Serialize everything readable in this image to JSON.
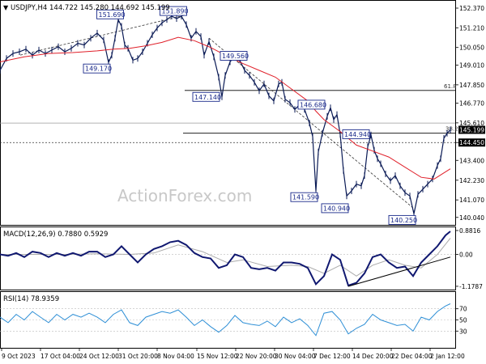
{
  "chart_data": [
    {
      "type": "candlestick",
      "panel": "price",
      "title": "USDJPY,H4  144.722 145.280 144.692 145.199",
      "ylim": [
        139.6,
        152.8
      ],
      "yticks": [
        "152.370",
        "151.210",
        "150.050",
        "149.010",
        "147.850",
        "146.770",
        "145.610",
        "144.450",
        "143.400",
        "142.230",
        "141.070",
        "140.040"
      ],
      "last_price": "145.199",
      "marked_level": "144.450",
      "fib_label": "61.8",
      "fib_label2": "38.2",
      "watermark": "ActionForex.com",
      "price_path": [
        [
          0,
          148.7
        ],
        [
          8,
          149.4
        ],
        [
          16,
          149.7
        ],
        [
          24,
          149.8
        ],
        [
          32,
          149.95
        ],
        [
          40,
          149.6
        ],
        [
          48,
          149.9
        ],
        [
          56,
          149.7
        ],
        [
          64,
          149.9
        ],
        [
          72,
          150.1
        ],
        [
          80,
          149.8
        ],
        [
          88,
          150.0
        ],
        [
          96,
          150.3
        ],
        [
          104,
          150.2
        ],
        [
          112,
          150.6
        ],
        [
          120,
          150.9
        ],
        [
          128,
          150.5
        ],
        [
          134,
          149.17
        ],
        [
          138,
          149.6
        ],
        [
          142,
          150.6
        ],
        [
          146,
          151.69
        ],
        [
          150,
          151.3
        ],
        [
          154,
          150.2
        ],
        [
          158,
          150.0
        ],
        [
          164,
          149.3
        ],
        [
          170,
          149.4
        ],
        [
          176,
          149.8
        ],
        [
          182,
          150.3
        ],
        [
          188,
          150.8
        ],
        [
          194,
          151.2
        ],
        [
          200,
          151.5
        ],
        [
          206,
          151.7
        ],
        [
          212,
          151.9
        ],
        [
          218,
          151.75
        ],
        [
          224,
          151.89
        ],
        [
          230,
          151.4
        ],
        [
          236,
          150.6
        ],
        [
          242,
          151.0
        ],
        [
          248,
          150.7
        ],
        [
          252,
          149.6
        ],
        [
          258,
          150.4
        ],
        [
          264,
          149.5
        ],
        [
          270,
          148.3
        ],
        [
          274,
          147.14
        ],
        [
          278,
          148.4
        ],
        [
          284,
          149.2
        ],
        [
          290,
          149.56
        ],
        [
          296,
          149.3
        ],
        [
          302,
          148.7
        ],
        [
          308,
          148.4
        ],
        [
          314,
          148.0
        ],
        [
          320,
          147.5
        ],
        [
          326,
          147.9
        ],
        [
          332,
          147.2
        ],
        [
          338,
          146.9
        ],
        [
          344,
          147.9
        ],
        [
          348,
          148.0
        ],
        [
          352,
          147.0
        ],
        [
          358,
          146.8
        ],
        [
          364,
          146.4
        ],
        [
          370,
          146.68
        ],
        [
          376,
          146.4
        ],
        [
          382,
          145.6
        ],
        [
          386,
          144.8
        ],
        [
          390,
          141.59
        ],
        [
          393,
          143.9
        ],
        [
          398,
          145.0
        ],
        [
          404,
          146.0
        ],
        [
          408,
          146.5
        ],
        [
          412,
          145.8
        ],
        [
          416,
          146.1
        ],
        [
          420,
          144.94
        ],
        [
          424,
          142.8
        ],
        [
          428,
          141.3
        ],
        [
          434,
          141.6
        ],
        [
          440,
          142.0
        ],
        [
          446,
          141.9
        ],
        [
          450,
          142.5
        ],
        [
          454,
          144.2
        ],
        [
          458,
          144.9
        ],
        [
          462,
          144.0
        ],
        [
          466,
          143.5
        ],
        [
          470,
          143.2
        ],
        [
          476,
          142.6
        ],
        [
          482,
          142.2
        ],
        [
          488,
          142.5
        ],
        [
          494,
          141.9
        ],
        [
          500,
          141.5
        ],
        [
          506,
          141.3
        ],
        [
          511,
          140.25
        ],
        [
          516,
          141.4
        ],
        [
          522,
          141.7
        ],
        [
          528,
          142.0
        ],
        [
          534,
          142.3
        ],
        [
          540,
          143.1
        ],
        [
          544,
          143.5
        ],
        [
          548,
          144.7
        ],
        [
          552,
          145.0
        ],
        [
          556,
          145.2
        ]
      ],
      "ma_path": [
        [
          0,
          149.2
        ],
        [
          30,
          149.5
        ],
        [
          60,
          149.7
        ],
        [
          90,
          149.75
        ],
        [
          120,
          149.85
        ],
        [
          140,
          149.95
        ],
        [
          160,
          150.0
        ],
        [
          180,
          150.15
        ],
        [
          200,
          150.35
        ],
        [
          220,
          150.65
        ],
        [
          240,
          150.45
        ],
        [
          260,
          150.05
        ],
        [
          280,
          149.55
        ],
        [
          300,
          149.1
        ],
        [
          320,
          148.7
        ],
        [
          340,
          148.3
        ],
        [
          360,
          147.6
        ],
        [
          380,
          146.9
        ],
        [
          390,
          146.3
        ],
        [
          400,
          145.8
        ],
        [
          420,
          145.1
        ],
        [
          440,
          144.3
        ],
        [
          460,
          143.95
        ],
        [
          480,
          143.6
        ],
        [
          500,
          143.0
        ],
        [
          520,
          142.4
        ],
        [
          536,
          142.3
        ],
        [
          556,
          142.9
        ]
      ],
      "annotations": [
        {
          "label": "151.690",
          "x": 146,
          "y": 151.69
        },
        {
          "label": "151.890",
          "x": 224,
          "y": 151.89
        },
        {
          "label": "149.170",
          "x": 134,
          "y": 149.17
        },
        {
          "label": "149.560",
          "x": 290,
          "y": 149.56
        },
        {
          "label": "147.140",
          "x": 274,
          "y": 147.14
        },
        {
          "label": "146.680",
          "x": 370,
          "y": 146.68
        },
        {
          "label": "144.940",
          "x": 420,
          "y": 144.94
        },
        {
          "label": "141.590",
          "x": 390,
          "y": 141.59
        },
        {
          "label": "140.940",
          "x": 428,
          "y": 140.94
        },
        {
          "label": "140.250",
          "x": 511,
          "y": 140.25
        }
      ]
    },
    {
      "type": "line",
      "panel": "macd",
      "title": "MACD(12,26,9) 0.7880 0.5929",
      "ylim": [
        -1.3,
        1.0
      ],
      "yticks": [
        "0.8816",
        "0.00",
        "-1.1787"
      ],
      "macd_path": [
        [
          0,
          0.0
        ],
        [
          10,
          -0.05
        ],
        [
          20,
          0.05
        ],
        [
          30,
          -0.1
        ],
        [
          40,
          0.1
        ],
        [
          50,
          0.05
        ],
        [
          60,
          -0.1
        ],
        [
          70,
          0.05
        ],
        [
          80,
          -0.05
        ],
        [
          90,
          0.05
        ],
        [
          100,
          -0.05
        ],
        [
          110,
          0.1
        ],
        [
          120,
          0.1
        ],
        [
          130,
          -0.1
        ],
        [
          140,
          0.0
        ],
        [
          150,
          0.3
        ],
        [
          160,
          0.0
        ],
        [
          170,
          -0.3
        ],
        [
          180,
          0.0
        ],
        [
          190,
          0.2
        ],
        [
          200,
          0.3
        ],
        [
          210,
          0.45
        ],
        [
          220,
          0.5
        ],
        [
          230,
          0.35
        ],
        [
          240,
          0.05
        ],
        [
          250,
          -0.1
        ],
        [
          260,
          -0.15
        ],
        [
          270,
          -0.5
        ],
        [
          280,
          -0.4
        ],
        [
          290,
          0.0
        ],
        [
          300,
          -0.1
        ],
        [
          310,
          -0.5
        ],
        [
          320,
          -0.55
        ],
        [
          330,
          -0.5
        ],
        [
          340,
          -0.6
        ],
        [
          350,
          -0.3
        ],
        [
          360,
          -0.3
        ],
        [
          370,
          -0.35
        ],
        [
          380,
          -0.5
        ],
        [
          390,
          -1.1
        ],
        [
          400,
          -0.8
        ],
        [
          410,
          0.0
        ],
        [
          420,
          -0.2
        ],
        [
          430,
          -1.15
        ],
        [
          440,
          -1.05
        ],
        [
          450,
          -0.7
        ],
        [
          460,
          -0.1
        ],
        [
          470,
          0.0
        ],
        [
          480,
          -0.3
        ],
        [
          490,
          -0.5
        ],
        [
          500,
          -0.45
        ],
        [
          510,
          -0.8
        ],
        [
          520,
          -0.3
        ],
        [
          530,
          0.0
        ],
        [
          540,
          0.3
        ],
        [
          550,
          0.7
        ],
        [
          556,
          0.85
        ]
      ],
      "signal_path": [
        [
          0,
          0.0
        ],
        [
          40,
          0.0
        ],
        [
          80,
          0.0
        ],
        [
          120,
          0.02
        ],
        [
          160,
          0.0
        ],
        [
          190,
          0.05
        ],
        [
          220,
          0.35
        ],
        [
          250,
          0.1
        ],
        [
          280,
          -0.3
        ],
        [
          300,
          -0.2
        ],
        [
          330,
          -0.45
        ],
        [
          360,
          -0.4
        ],
        [
          380,
          -0.45
        ],
        [
          400,
          -0.7
        ],
        [
          420,
          -0.4
        ],
        [
          440,
          -0.8
        ],
        [
          460,
          -0.4
        ],
        [
          480,
          -0.2
        ],
        [
          500,
          -0.4
        ],
        [
          520,
          -0.5
        ],
        [
          540,
          0.0
        ],
        [
          556,
          0.6
        ]
      ],
      "trendline": [
        [
          430,
          -1.18
        ],
        [
          556,
          -0.1
        ]
      ]
    },
    {
      "type": "line",
      "panel": "rsi",
      "title": "RSI(14) 78.9359",
      "ylim": [
        0,
        100
      ],
      "yticks": [
        "70",
        "50",
        "30"
      ],
      "rsi_path": [
        [
          0,
          55
        ],
        [
          10,
          45
        ],
        [
          20,
          60
        ],
        [
          30,
          50
        ],
        [
          40,
          65
        ],
        [
          50,
          55
        ],
        [
          60,
          45
        ],
        [
          70,
          60
        ],
        [
          80,
          50
        ],
        [
          90,
          60
        ],
        [
          100,
          55
        ],
        [
          110,
          62
        ],
        [
          120,
          55
        ],
        [
          130,
          45
        ],
        [
          140,
          60
        ],
        [
          150,
          68
        ],
        [
          160,
          45
        ],
        [
          170,
          40
        ],
        [
          180,
          55
        ],
        [
          190,
          60
        ],
        [
          200,
          65
        ],
        [
          210,
          62
        ],
        [
          220,
          68
        ],
        [
          230,
          55
        ],
        [
          240,
          40
        ],
        [
          250,
          50
        ],
        [
          260,
          38
        ],
        [
          270,
          28
        ],
        [
          280,
          40
        ],
        [
          290,
          58
        ],
        [
          300,
          45
        ],
        [
          310,
          42
        ],
        [
          320,
          40
        ],
        [
          330,
          48
        ],
        [
          340,
          38
        ],
        [
          350,
          55
        ],
        [
          360,
          45
        ],
        [
          370,
          52
        ],
        [
          380,
          40
        ],
        [
          390,
          22
        ],
        [
          400,
          62
        ],
        [
          410,
          65
        ],
        [
          420,
          50
        ],
        [
          430,
          25
        ],
        [
          440,
          35
        ],
        [
          450,
          42
        ],
        [
          460,
          60
        ],
        [
          470,
          50
        ],
        [
          480,
          45
        ],
        [
          490,
          40
        ],
        [
          500,
          42
        ],
        [
          510,
          30
        ],
        [
          520,
          55
        ],
        [
          530,
          50
        ],
        [
          540,
          65
        ],
        [
          550,
          75
        ],
        [
          556,
          79
        ]
      ]
    }
  ],
  "x_axis": {
    "labels": [
      "9 Oct 2023",
      "17 Oct 04:00",
      "24 Oct 12:00",
      "31 Oct 20:00",
      "8 Nov 04:00",
      "15 Nov 12:00",
      "22 Nov 20:00",
      "30 Nov 04:00",
      "7 Dec 12:00",
      "14 Dec 20:00",
      "22 Dec 04:00",
      "2 Jan 12:00"
    ]
  }
}
